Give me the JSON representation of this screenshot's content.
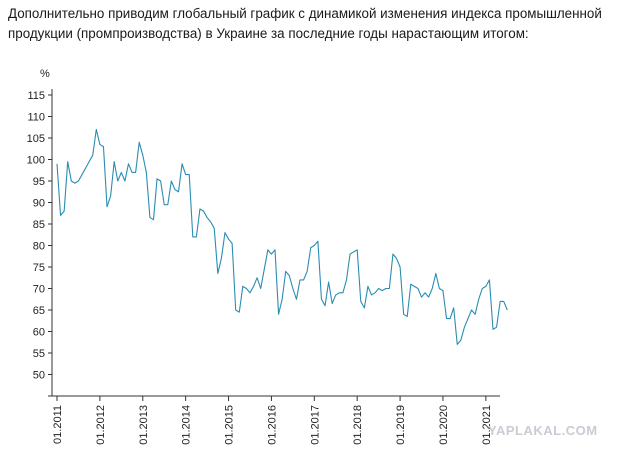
{
  "intro_text": "Дополнительно приводим глобальный график с динамикой изменения индекса промышленной продукции (промпроизводства) в Украине за последние годы нарастающим итогом:",
  "watermark": "YAPLAKAL.COM",
  "colors": {
    "line": "#2b8cb3",
    "axis": "#333333",
    "tick_text": "#222222"
  },
  "chart_data": {
    "type": "line",
    "title": "",
    "ylabel": "%",
    "xlabel": "",
    "ylim": [
      45,
      115
    ],
    "yticks": [
      50,
      55,
      60,
      65,
      70,
      75,
      80,
      85,
      90,
      95,
      100,
      105,
      110,
      115
    ],
    "xlim": [
      2011.0,
      2021.33
    ],
    "xticks": [
      {
        "label": "01.2011",
        "x": 2011.0
      },
      {
        "label": "01.2012",
        "x": 2012.0
      },
      {
        "label": "01.2013",
        "x": 2013.0
      },
      {
        "label": "01.2014",
        "x": 2014.0
      },
      {
        "label": "01.2015",
        "x": 2015.0
      },
      {
        "label": "01.2016",
        "x": 2016.0
      },
      {
        "label": "01.2017",
        "x": 2017.0
      },
      {
        "label": "01.2018",
        "x": 2018.0
      },
      {
        "label": "01.2019",
        "x": 2019.0
      },
      {
        "label": "01.2020",
        "x": 2020.0
      },
      {
        "label": "01.2021",
        "x": 2021.0
      }
    ],
    "grid": false,
    "series": [
      {
        "name": "",
        "start": "01.2011",
        "frequency": "monthly",
        "values": [
          99.0,
          87.0,
          88.0,
          99.5,
          95.0,
          94.5,
          95.0,
          96.5,
          98.0,
          99.5,
          101.0,
          107.0,
          103.5,
          103.0,
          89.0,
          91.5,
          99.5,
          95.0,
          97.0,
          95.0,
          99.0,
          97.0,
          97.0,
          104.0,
          101.0,
          97.0,
          86.5,
          86.0,
          95.5,
          95.0,
          89.5,
          89.5,
          95.0,
          93.0,
          92.5,
          99.0,
          96.5,
          96.5,
          82.0,
          82.0,
          88.5,
          88.0,
          86.5,
          85.5,
          84.0,
          73.5,
          77.0,
          83.0,
          81.5,
          80.5,
          65.0,
          64.5,
          70.5,
          70.0,
          69.0,
          70.5,
          72.5,
          70.0,
          74.5,
          79.0,
          78.0,
          79.0,
          64.0,
          67.5,
          74.0,
          73.0,
          70.0,
          67.5,
          72.0,
          72.0,
          74.0,
          79.5,
          80.0,
          81.0,
          67.5,
          66.0,
          71.5,
          66.5,
          68.5,
          69.0,
          69.0,
          72.0,
          78.0,
          78.5,
          79.0,
          67.0,
          65.5,
          70.5,
          68.5,
          69.0,
          70.0,
          69.5,
          70.0,
          70.0,
          78.0,
          77.0,
          75.0,
          64.0,
          63.5,
          71.0,
          70.5,
          70.0,
          68.0,
          69.0,
          68.0,
          70.0,
          73.5,
          70.0,
          69.5,
          63.0,
          63.0,
          65.5,
          57.0,
          58.0,
          61.0,
          63.0,
          65.0,
          64.0,
          67.5,
          70.0,
          70.5,
          72.0,
          60.5,
          61.0,
          67.0,
          67.0,
          65.0
        ]
      }
    ]
  }
}
